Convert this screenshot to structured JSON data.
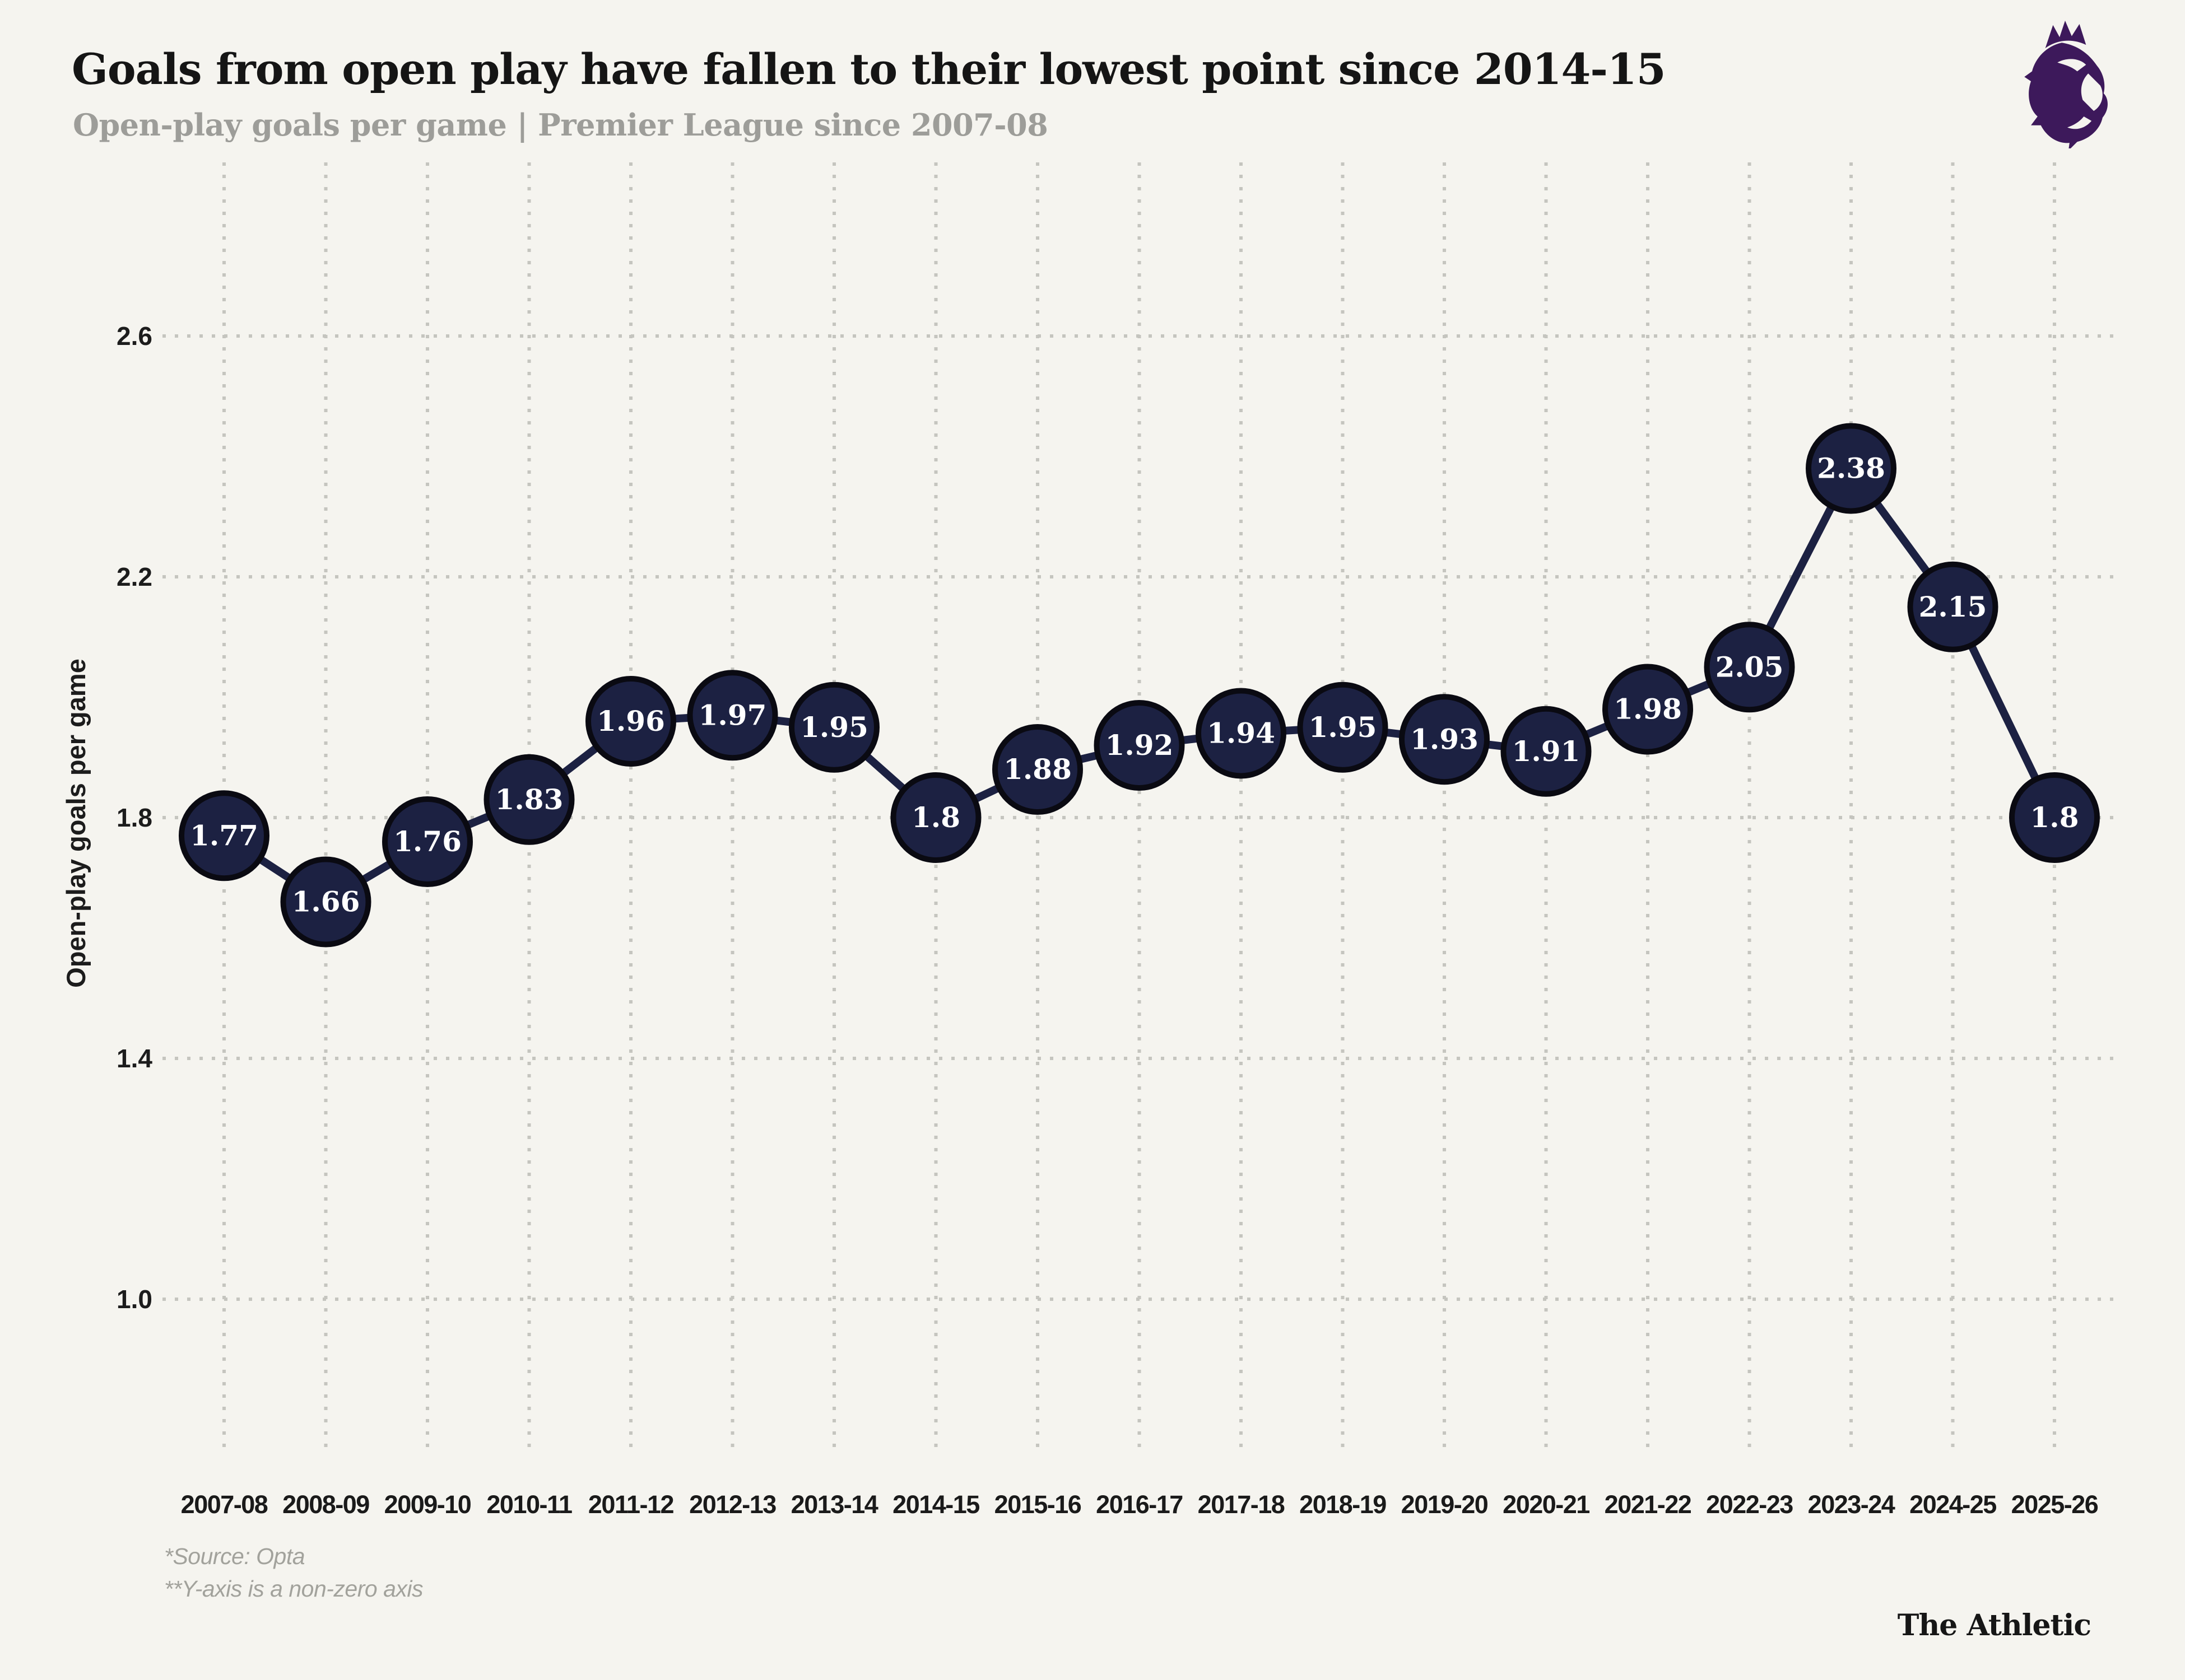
{
  "header": {
    "title": "Goals from open play have fallen to their lowest point since 2014-15",
    "subtitle": "Open-play goals per game | Premier League since 2007-08"
  },
  "logo": {
    "name": "premier-league-lion",
    "color": "#3d195b"
  },
  "chart_data": {
    "type": "line",
    "title": "Goals from open play have fallen to their lowest point since 2014-15",
    "subtitle": "Open-play goals per game | Premier League since 2007-08",
    "categories": [
      "2007-08",
      "2008-09",
      "2009-10",
      "2010-11",
      "2011-12",
      "2012-13",
      "2013-14",
      "2014-15",
      "2015-16",
      "2016-17",
      "2017-18",
      "2018-19",
      "2019-20",
      "2020-21",
      "2021-22",
      "2022-23",
      "2023-24",
      "2024-25",
      "2025-26"
    ],
    "values": [
      1.77,
      1.66,
      1.76,
      1.83,
      1.96,
      1.97,
      1.95,
      1.8,
      1.88,
      1.92,
      1.94,
      1.95,
      1.93,
      1.91,
      1.98,
      2.05,
      2.38,
      2.15,
      1.8
    ],
    "xlabel": "",
    "ylabel": "Open-play goals per game",
    "yticks": [
      1.0,
      1.4,
      1.8,
      2.2,
      2.6
    ],
    "ylim": [
      0.87,
      2.73
    ],
    "grid": "dotted horizontal and vertical",
    "legend_position": "none",
    "point_labels_shown": true,
    "colors": {
      "background": "#f5f4ef",
      "grid": "#c5c5bf",
      "line": "#1c2142",
      "marker_fill": "#1c2142",
      "marker_stroke": "#0a0a12",
      "value_text": "#ffffff",
      "axis_text": "#1c1c1c"
    }
  },
  "footer": {
    "source_note": "*Source: Opta",
    "axis_note": "**Y-axis is a non-zero axis",
    "brand": "The Athletic"
  }
}
